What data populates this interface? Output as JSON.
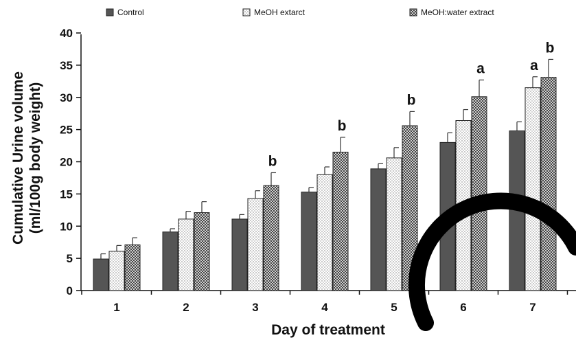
{
  "chart_data": {
    "type": "bar",
    "xlabel": "Day of treatment",
    "ylabel_line1": "Cumulative Urine volume",
    "ylabel_line2": "(ml/100g body weight)",
    "categories": [
      "1",
      "2",
      "3",
      "4",
      "5",
      "6",
      "7"
    ],
    "ylim": [
      0,
      40
    ],
    "yticks": [
      0,
      5,
      10,
      15,
      20,
      25,
      30,
      35,
      40
    ],
    "legend_position": "top",
    "series": [
      {
        "name": "Control",
        "color": "#555555",
        "pattern": "solid",
        "values": [
          4.9,
          9.1,
          11.1,
          15.3,
          18.9,
          23.0,
          24.8
        ],
        "errors": [
          0.8,
          0.5,
          0.7,
          0.7,
          0.8,
          1.5,
          1.4
        ],
        "significance": [
          "",
          "",
          "",
          "",
          "",
          "",
          ""
        ]
      },
      {
        "name": "MeOH extarct",
        "color": "#ffffff",
        "pattern": "dots",
        "values": [
          6.1,
          11.1,
          14.3,
          18.0,
          20.6,
          26.4,
          31.5
        ],
        "errors": [
          0.9,
          1.2,
          1.2,
          1.2,
          1.6,
          1.7,
          1.7
        ],
        "significance": [
          "",
          "",
          "",
          "",
          "",
          "",
          "a"
        ]
      },
      {
        "name": "MeOH:water extract",
        "color": "#8a8a8a",
        "pattern": "checker",
        "values": [
          7.1,
          12.1,
          16.3,
          21.5,
          25.6,
          30.1,
          33.1
        ],
        "errors": [
          1.1,
          1.7,
          2.0,
          2.3,
          2.2,
          2.6,
          2.8
        ],
        "significance": [
          "",
          "",
          "b",
          "b",
          "b",
          "a",
          "b"
        ]
      }
    ]
  }
}
